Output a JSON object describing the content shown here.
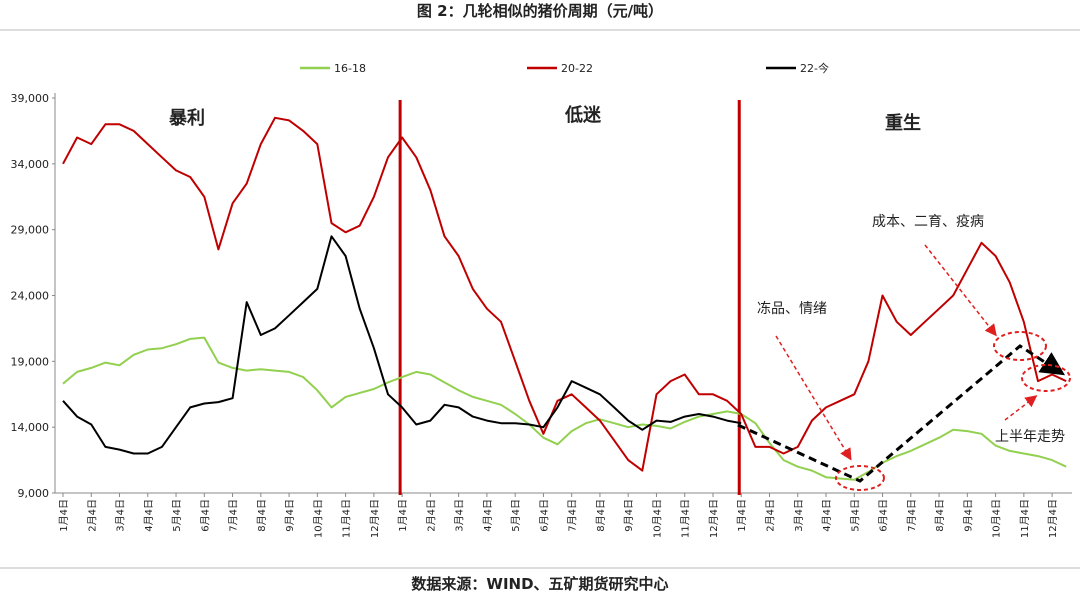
{
  "chart_data": {
    "type": "line",
    "title": "图 2：几轮相似的猪价周期（元/吨）",
    "source": "数据来源：WIND、五矿期货研究中心",
    "annotations": [
      "暴利",
      "低迷",
      "重生",
      "成本、二育、疫病",
      "冻品、情绪",
      "上半年走势"
    ],
    "legend": "top",
    "categories": [
      "1月4日",
      null,
      "2月4日",
      null,
      "3月4日",
      null,
      "4月4日",
      null,
      "5月4日",
      null,
      "6月4日",
      null,
      "7月4日",
      null,
      "8月4日",
      null,
      "9月4日",
      null,
      "10月4日",
      null,
      "11月4日",
      null,
      "12月4日",
      null,
      "1月4日",
      null,
      "2月4日",
      null,
      "3月4日",
      null,
      "4月4日",
      null,
      "5月4日",
      null,
      "6月4日",
      null,
      "7月4日",
      null,
      "8月4日",
      null,
      "9月4日",
      null,
      "10月4日",
      null,
      "11月4日",
      null,
      "12月4日",
      null,
      "1月4日",
      null,
      "2月4日",
      null,
      "3月4日",
      null,
      "4月4日",
      null,
      "5月4日",
      null,
      "6月4日",
      null,
      "7月4日",
      null,
      "8月4日",
      null,
      "9月4日",
      null,
      "10月4日",
      null,
      "11月4日",
      null,
      "12月4日",
      null
    ],
    "series": [
      {
        "name": "16-18",
        "color": "#92d050",
        "values": [
          17300,
          18200,
          18500,
          18900,
          18700,
          19500,
          19900,
          20000,
          20300,
          20700,
          20800,
          18900,
          18500,
          18300,
          18400,
          18300,
          18200,
          17800,
          16800,
          15500,
          16300,
          16600,
          16900,
          17400,
          17800,
          18200,
          18000,
          17400,
          16800,
          16300,
          16000,
          15700,
          15000,
          14200,
          13200,
          12700,
          13700,
          14300,
          14600,
          14300,
          14000,
          14200,
          14100,
          13900,
          14400,
          14800,
          15000,
          15200,
          15000,
          14300,
          12800,
          11500,
          11000,
          10700,
          10200,
          10100,
          10000,
          10600,
          11300,
          11800,
          12200,
          12700,
          13200,
          13800,
          13700,
          13500,
          12600,
          12200,
          12000,
          11800,
          11500,
          11000
        ]
      },
      {
        "name": "20-22",
        "color": "#c00000",
        "values": [
          34000,
          36000,
          35500,
          37000,
          37000,
          36500,
          35500,
          34500,
          33500,
          33000,
          31500,
          27500,
          31000,
          32500,
          35500,
          37500,
          37300,
          36500,
          35500,
          29500,
          28800,
          29300,
          31500,
          34500,
          36000,
          34500,
          32000,
          28500,
          27000,
          24500,
          23000,
          22000,
          19000,
          16000,
          13500,
          16000,
          16500,
          15500,
          14500,
          13000,
          11500,
          10700,
          16500,
          17500,
          18000,
          16500,
          16500,
          16000,
          15000,
          12500,
          12500,
          12000,
          12500,
          14500,
          15500,
          16000,
          16500,
          19000,
          24000,
          22000,
          21000,
          22000,
          23000,
          24000,
          26000,
          28000,
          27000,
          25000,
          22000,
          17500,
          18000,
          17500
        ]
      },
      {
        "name": "22-今",
        "color": "#000000",
        "values": [
          16000,
          14800,
          14200,
          12500,
          12300,
          12000,
          12000,
          12500,
          14000,
          15500,
          15800,
          15900,
          16200,
          23500,
          21000,
          21500,
          22500,
          23500,
          24500,
          28500,
          27000,
          23000,
          20000,
          16500,
          15500,
          14200,
          14500,
          15700,
          15500,
          14800,
          14500,
          14300,
          14300,
          14200,
          14000,
          15500,
          17500,
          17000,
          16500,
          15500,
          14500,
          13800,
          14500,
          14400,
          14800,
          15000,
          14800,
          14500,
          14300,
          null,
          null,
          null,
          null,
          null,
          null,
          null,
          null,
          null,
          null,
          null,
          null,
          null,
          null,
          null,
          null,
          null,
          null,
          null,
          null,
          null,
          null,
          null
        ]
      }
    ],
    "ylim": [
      9000,
      39000
    ],
    "yticks": [
      {
        "value": 9000,
        "label": "9,000"
      },
      {
        "value": 14000,
        "label": "14,000"
      },
      {
        "value": 19000,
        "label": "19,000"
      },
      {
        "value": 24000,
        "label": "24,000"
      },
      {
        "value": 29000,
        "label": "29,000"
      },
      {
        "value": 34000,
        "label": "34,000"
      },
      {
        "value": 39000,
        "label": "39,000"
      }
    ]
  }
}
